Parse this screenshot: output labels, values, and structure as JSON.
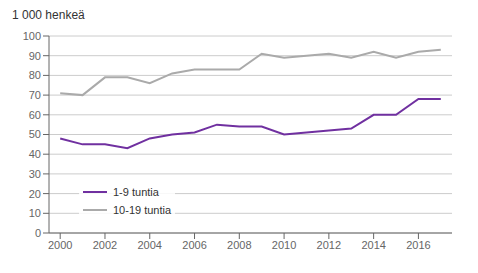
{
  "chart_data": {
    "type": "line",
    "ylabel": "1 000 henkeä",
    "x": [
      2000,
      2001,
      2002,
      2003,
      2004,
      2005,
      2006,
      2007,
      2008,
      2009,
      2010,
      2011,
      2012,
      2013,
      2014,
      2015,
      2016,
      2017
    ],
    "series": [
      {
        "name": "1-9 tuntia",
        "color": "#7030a0",
        "values": [
          48,
          45,
          45,
          43,
          48,
          50,
          51,
          55,
          54,
          54,
          50,
          51,
          52,
          53,
          60,
          60,
          68,
          68
        ]
      },
      {
        "name": "10-19 tuntia",
        "color": "#aaaaaa",
        "values": [
          71,
          70,
          79,
          79,
          76,
          81,
          83,
          83,
          83,
          91,
          89,
          90,
          91,
          89,
          92,
          89,
          92,
          93
        ]
      }
    ],
    "xlim": [
      1999.5,
      2017.5
    ],
    "xticks": [
      2000,
      2002,
      2004,
      2006,
      2008,
      2010,
      2012,
      2014,
      2016
    ],
    "ylim": [
      0,
      100
    ],
    "yticks": [
      0,
      10,
      20,
      30,
      40,
      50,
      60,
      70,
      80,
      90,
      100
    ],
    "grid": true,
    "legend": "lower left"
  }
}
